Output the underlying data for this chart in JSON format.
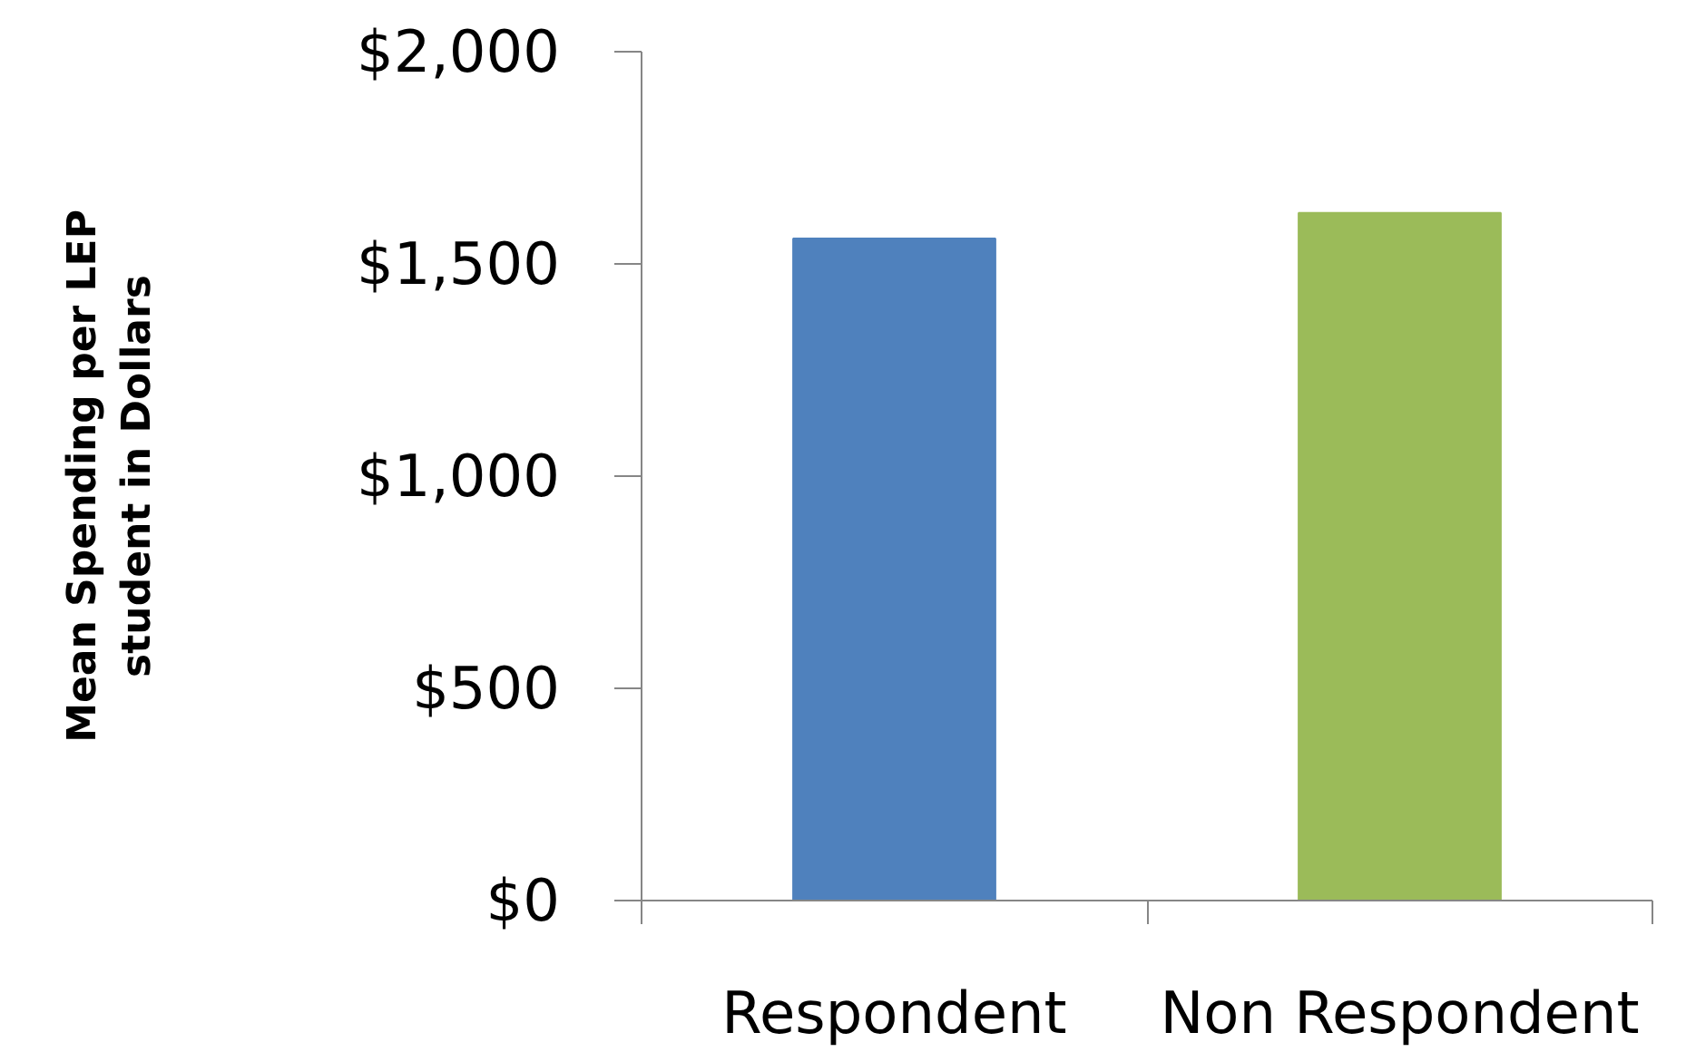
{
  "chart_data": {
    "type": "bar",
    "ylabel": "Mean Spending per LEP\nstudent in Dollars",
    "categories": [
      "Respondent",
      "Non Respondent"
    ],
    "values": [
      1560,
      1620
    ],
    "colors": [
      "#4f81bd",
      "#9bbb59"
    ],
    "ylim": [
      0,
      2000
    ],
    "yticks": [
      {
        "value": 0,
        "label": "$0"
      },
      {
        "value": 500,
        "label": "$500"
      },
      {
        "value": 1000,
        "label": "$1,000"
      },
      {
        "value": 1500,
        "label": "$1,500"
      },
      {
        "value": 2000,
        "label": "$2,000"
      }
    ]
  }
}
